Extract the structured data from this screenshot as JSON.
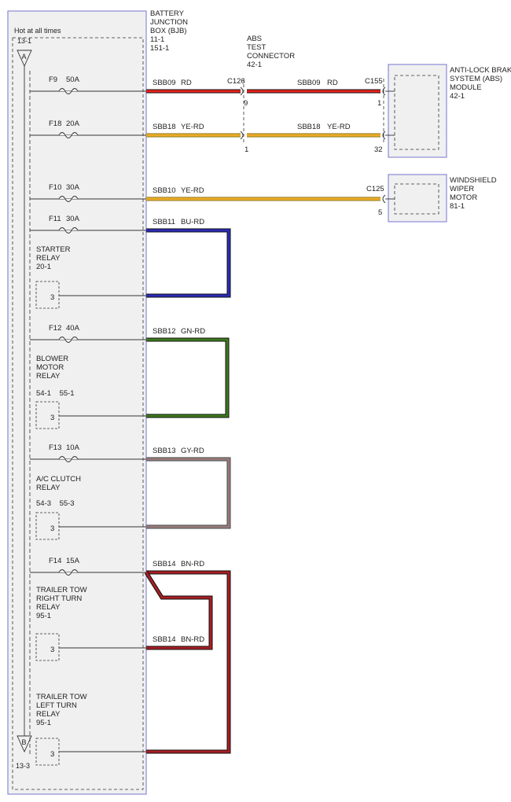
{
  "bjb": {
    "hot_label": "Hot at all times",
    "ref_top": "13-1",
    "ref_bottom": "13-3",
    "bus_top": "A",
    "bus_bottom": "B",
    "title_lines": [
      "BATTERY",
      "JUNCTION",
      "BOX (BJB)",
      "11-1",
      "151-1"
    ]
  },
  "abs_connector": {
    "lines": [
      "ABS",
      "TEST",
      "CONNECTOR",
      "42-1"
    ]
  },
  "abs_module": {
    "lines": [
      "ANTI-LOCK BRAKE",
      "SYSTEM (ABS)",
      "MODULE",
      "42-1"
    ]
  },
  "wiper_motor": {
    "lines": [
      "WINDSHIELD",
      "WIPER",
      "MOTOR",
      "81-1"
    ]
  },
  "connectors": {
    "c126": "C126",
    "c155": "C155",
    "c125": "C125",
    "c126_pin_f9": "9",
    "c126_pin_f18": "1",
    "c155_pin_f9": "1",
    "c155_pin_f18": "32",
    "c125_pin": "5"
  },
  "fuses": [
    {
      "name": "F9",
      "amps": "50A"
    },
    {
      "name": "F18",
      "amps": "20A"
    },
    {
      "name": "F10",
      "amps": "30A"
    },
    {
      "name": "F11",
      "amps": "30A"
    },
    {
      "name": "F12",
      "amps": "40A"
    },
    {
      "name": "F13",
      "amps": "10A"
    },
    {
      "name": "F14",
      "amps": "15A"
    }
  ],
  "wires": {
    "f9_a": {
      "circuit": "SBB09",
      "color": "RD"
    },
    "f9_b": {
      "circuit": "SBB09",
      "color": "RD"
    },
    "f18_a": {
      "circuit": "SBB18",
      "color": "YE-RD"
    },
    "f18_b": {
      "circuit": "SBB18",
      "color": "YE-RD"
    },
    "f10": {
      "circuit": "SBB10",
      "color": "YE-RD"
    },
    "f11": {
      "circuit": "SBB11",
      "color": "BU-RD"
    },
    "f12": {
      "circuit": "SBB12",
      "color": "GN-RD"
    },
    "f13": {
      "circuit": "SBB13",
      "color": "GY-RD"
    },
    "f14_a": {
      "circuit": "SBB14",
      "color": "BN-RD"
    },
    "f14_b": {
      "circuit": "SBB14",
      "color": "BN-RD"
    }
  },
  "relays": {
    "starter": {
      "lines": [
        "STARTER",
        "RELAY",
        "20-1"
      ],
      "pin": "3"
    },
    "blower": {
      "lines": [
        "BLOWER",
        "MOTOR",
        "RELAY",
        "54-1    55-1"
      ],
      "pin": "3"
    },
    "ac_clutch": {
      "lines": [
        "A/C CLUTCH",
        "RELAY",
        "54-3    55-3"
      ],
      "pin": "3"
    },
    "trailer_right": {
      "lines": [
        "TRAILER TOW",
        "RIGHT TURN",
        "RELAY",
        "95-1"
      ],
      "pin": "3"
    },
    "trailer_left": {
      "lines": [
        "TRAILER TOW",
        "LEFT TURN",
        "RELAY",
        "95-1"
      ],
      "pin": "3"
    }
  },
  "colors": {
    "red": "#e8231c",
    "yellow": "#f2cc2c",
    "blue": "#2a2ab8",
    "green": "#3e7a1e",
    "gray": "#8c8c8c",
    "brown": "#a81e22",
    "box_border": "#8a8ad8",
    "box_fill": "#f0f0f0"
  }
}
